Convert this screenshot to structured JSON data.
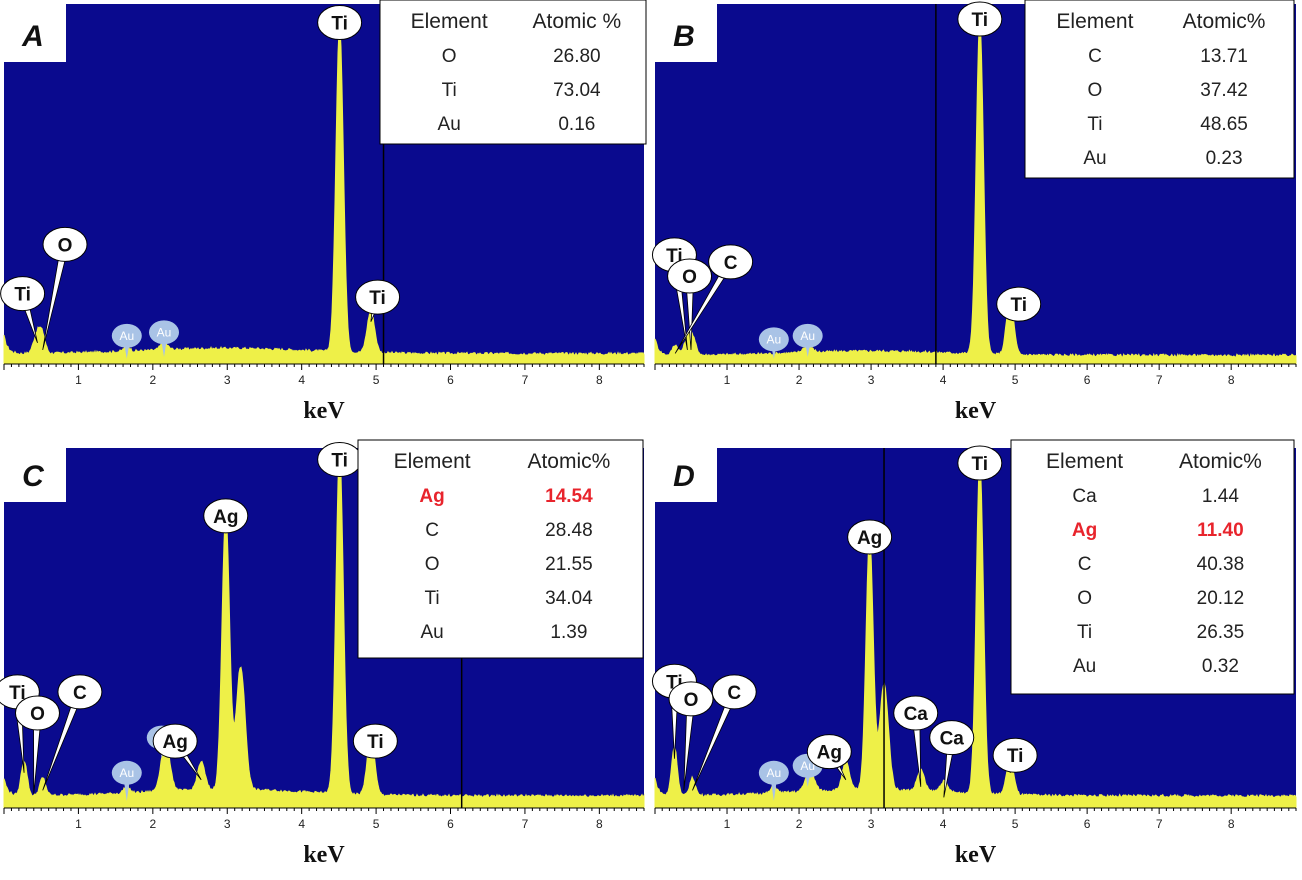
{
  "colors": {
    "plot_bg": "#0a0a8e",
    "spectrum": "#eef048",
    "label_bg": "#ffffff",
    "au_label_bg": "#a9c3e6",
    "highlight": "#e8242c"
  },
  "chart_data": [
    {
      "type": "line",
      "title": "A",
      "xlabel": "keV",
      "ylabel": "",
      "xlim": [
        0,
        8.6
      ],
      "ylim": [
        0,
        1
      ],
      "ticks": [
        "1",
        "2",
        "3",
        "4",
        "5",
        "6",
        "7",
        "8"
      ],
      "grid": false,
      "marker_line": 5.1,
      "baseline": 0.025,
      "peaks": [
        {
          "x": 0.45,
          "y": 0.06,
          "w": 0.05
        },
        {
          "x": 0.52,
          "y": 0.04,
          "w": 0.04
        },
        {
          "x": 1.65,
          "y": 0.015,
          "w": 0.04
        },
        {
          "x": 2.15,
          "y": 0.02,
          "w": 0.05
        },
        {
          "x": 4.51,
          "y": 0.93,
          "w": 0.05
        },
        {
          "x": 4.93,
          "y": 0.12,
          "w": 0.05
        }
      ],
      "peak_labels": [
        {
          "text": "Ti",
          "x": 0.45,
          "y": 0.06,
          "lx": 0.25,
          "ly": 0.2,
          "style": "big"
        },
        {
          "text": "O",
          "x": 0.52,
          "y": 0.04,
          "lx": 0.82,
          "ly": 0.34,
          "style": "big"
        },
        {
          "text": "Au",
          "x": 1.65,
          "y": 0.015,
          "lx": 1.65,
          "ly": 0.08,
          "style": "small"
        },
        {
          "text": "Au",
          "x": 2.15,
          "y": 0.02,
          "lx": 2.15,
          "ly": 0.09,
          "style": "small"
        },
        {
          "text": "Ti",
          "x": 4.51,
          "y": 0.93,
          "lx": 4.51,
          "ly": 0.97,
          "style": "big"
        },
        {
          "text": "Ti",
          "x": 4.93,
          "y": 0.12,
          "lx": 5.02,
          "ly": 0.19,
          "style": "big"
        }
      ],
      "table": {
        "headers": [
          "Element",
          "Atomic %"
        ],
        "rows": [
          [
            "O",
            "26.80"
          ],
          [
            "Ti",
            "73.04"
          ],
          [
            "Au",
            "0.16"
          ]
        ],
        "highlight_rows": []
      }
    },
    {
      "type": "line",
      "title": "B",
      "xlabel": "keV",
      "ylabel": "",
      "xlim": [
        0,
        8.9
      ],
      "ylim": [
        0,
        1
      ],
      "ticks": [
        "1",
        "2",
        "3",
        "4",
        "5",
        "6",
        "7",
        "8"
      ],
      "grid": false,
      "marker_line": 3.9,
      "baseline": 0.02,
      "peaks": [
        {
          "x": 0.28,
          "y": 0.03,
          "w": 0.04
        },
        {
          "x": 0.45,
          "y": 0.04,
          "w": 0.05
        },
        {
          "x": 0.52,
          "y": 0.045,
          "w": 0.05
        },
        {
          "x": 2.12,
          "y": 0.02,
          "w": 0.06
        },
        {
          "x": 4.51,
          "y": 0.95,
          "w": 0.05
        },
        {
          "x": 4.93,
          "y": 0.16,
          "w": 0.05
        }
      ],
      "peak_labels": [
        {
          "text": "Ti",
          "x": 0.45,
          "y": 0.04,
          "lx": 0.27,
          "ly": 0.31,
          "style": "big"
        },
        {
          "text": "O",
          "x": 0.5,
          "y": 0.04,
          "lx": 0.48,
          "ly": 0.25,
          "style": "big"
        },
        {
          "text": "C",
          "x": 0.28,
          "y": 0.03,
          "lx": 1.05,
          "ly": 0.29,
          "style": "big"
        },
        {
          "text": "Au",
          "x": 1.65,
          "y": 0.015,
          "lx": 1.65,
          "ly": 0.07,
          "style": "small"
        },
        {
          "text": "Au",
          "x": 2.12,
          "y": 0.02,
          "lx": 2.12,
          "ly": 0.08,
          "style": "small"
        },
        {
          "text": "Ti",
          "x": 4.51,
          "y": 0.95,
          "lx": 4.51,
          "ly": 0.98,
          "style": "big"
        },
        {
          "text": "Ti",
          "x": 4.93,
          "y": 0.16,
          "lx": 5.05,
          "ly": 0.17,
          "style": "big"
        }
      ],
      "table": {
        "headers": [
          "Element",
          "Atomic%"
        ],
        "rows": [
          [
            "C",
            "13.71"
          ],
          [
            "O",
            "37.42"
          ],
          [
            "Ti",
            "48.65"
          ],
          [
            "Au",
            "0.23"
          ]
        ],
        "highlight_rows": []
      }
    },
    {
      "type": "line",
      "title": "C",
      "xlabel": "keV",
      "ylabel": "",
      "xlim": [
        0,
        8.6
      ],
      "ylim": [
        0,
        1
      ],
      "ticks": [
        "1",
        "2",
        "3",
        "4",
        "5",
        "6",
        "7",
        "8"
      ],
      "grid": false,
      "marker_line": 6.15,
      "baseline": 0.03,
      "peaks": [
        {
          "x": 0.27,
          "y": 0.1,
          "w": 0.04
        },
        {
          "x": 0.52,
          "y": 0.05,
          "w": 0.04
        },
        {
          "x": 1.65,
          "y": 0.02,
          "w": 0.04
        },
        {
          "x": 2.17,
          "y": 0.14,
          "w": 0.06
        },
        {
          "x": 2.65,
          "y": 0.08,
          "w": 0.05
        },
        {
          "x": 2.98,
          "y": 0.79,
          "w": 0.05
        },
        {
          "x": 3.18,
          "y": 0.35,
          "w": 0.06
        },
        {
          "x": 4.51,
          "y": 0.97,
          "w": 0.05
        },
        {
          "x": 4.93,
          "y": 0.17,
          "w": 0.05
        }
      ],
      "peak_labels": [
        {
          "text": "Ti",
          "x": 0.27,
          "y": 0.1,
          "lx": 0.18,
          "ly": 0.33,
          "style": "big"
        },
        {
          "text": "O",
          "x": 0.4,
          "y": 0.04,
          "lx": 0.45,
          "ly": 0.27,
          "style": "big"
        },
        {
          "text": "C",
          "x": 0.52,
          "y": 0.05,
          "lx": 1.02,
          "ly": 0.33,
          "style": "big"
        },
        {
          "text": "Au",
          "x": 1.65,
          "y": 0.02,
          "lx": 1.65,
          "ly": 0.1,
          "style": "small"
        },
        {
          "text": "Au",
          "x": 2.12,
          "y": 0.14,
          "lx": 2.12,
          "ly": 0.2,
          "style": "small"
        },
        {
          "text": "Ag",
          "x": 2.65,
          "y": 0.08,
          "lx": 2.3,
          "ly": 0.19,
          "style": "big"
        },
        {
          "text": "Ag",
          "x": 2.98,
          "y": 0.79,
          "lx": 2.98,
          "ly": 0.83,
          "style": "big"
        },
        {
          "text": "Ti",
          "x": 4.51,
          "y": 0.97,
          "lx": 4.51,
          "ly": 0.99,
          "style": "big"
        },
        {
          "text": "Ti",
          "x": 4.93,
          "y": 0.17,
          "lx": 4.99,
          "ly": 0.19,
          "style": "big"
        }
      ],
      "table": {
        "headers": [
          "Element",
          "Atomic%"
        ],
        "rows": [
          [
            "Ag",
            "14.54"
          ],
          [
            "C",
            "28.48"
          ],
          [
            "O",
            "21.55"
          ],
          [
            "Ti",
            "34.04"
          ],
          [
            "Au",
            "1.39"
          ]
        ],
        "highlight_rows": [
          0
        ]
      }
    },
    {
      "type": "line",
      "title": "D",
      "xlabel": "keV",
      "ylabel": "",
      "xlim": [
        0,
        8.9
      ],
      "ylim": [
        0,
        1
      ],
      "ticks": [
        "1",
        "2",
        "3",
        "4",
        "5",
        "6",
        "7",
        "8"
      ],
      "grid": false,
      "marker_line": 3.18,
      "baseline": 0.03,
      "peaks": [
        {
          "x": 0.27,
          "y": 0.14,
          "w": 0.04
        },
        {
          "x": 0.52,
          "y": 0.05,
          "w": 0.04
        },
        {
          "x": 1.65,
          "y": 0.02,
          "w": 0.04
        },
        {
          "x": 2.15,
          "y": 0.06,
          "w": 0.06
        },
        {
          "x": 2.65,
          "y": 0.08,
          "w": 0.05
        },
        {
          "x": 2.98,
          "y": 0.72,
          "w": 0.05
        },
        {
          "x": 3.18,
          "y": 0.3,
          "w": 0.06
        },
        {
          "x": 3.69,
          "y": 0.06,
          "w": 0.05
        },
        {
          "x": 4.01,
          "y": 0.03,
          "w": 0.05
        },
        {
          "x": 4.51,
          "y": 0.95,
          "w": 0.05
        },
        {
          "x": 4.93,
          "y": 0.1,
          "w": 0.05
        }
      ],
      "peak_labels": [
        {
          "text": "Ti",
          "x": 0.27,
          "y": 0.14,
          "lx": 0.27,
          "ly": 0.36,
          "style": "big"
        },
        {
          "text": "O",
          "x": 0.4,
          "y": 0.05,
          "lx": 0.5,
          "ly": 0.31,
          "style": "big"
        },
        {
          "text": "C",
          "x": 0.52,
          "y": 0.05,
          "lx": 1.1,
          "ly": 0.33,
          "style": "big"
        },
        {
          "text": "Au",
          "x": 1.65,
          "y": 0.02,
          "lx": 1.65,
          "ly": 0.1,
          "style": "small"
        },
        {
          "text": "Au",
          "x": 2.12,
          "y": 0.06,
          "lx": 2.12,
          "ly": 0.12,
          "style": "small"
        },
        {
          "text": "Ag",
          "x": 2.65,
          "y": 0.08,
          "lx": 2.42,
          "ly": 0.16,
          "style": "big"
        },
        {
          "text": "Ag",
          "x": 2.98,
          "y": 0.72,
          "lx": 2.98,
          "ly": 0.77,
          "style": "big"
        },
        {
          "text": "Ca",
          "x": 3.69,
          "y": 0.06,
          "lx": 3.62,
          "ly": 0.27,
          "style": "big"
        },
        {
          "text": "Ca",
          "x": 4.01,
          "y": 0.03,
          "lx": 4.12,
          "ly": 0.2,
          "style": "big"
        },
        {
          "text": "Ti",
          "x": 4.51,
          "y": 0.95,
          "lx": 4.51,
          "ly": 0.98,
          "style": "big"
        },
        {
          "text": "Ti",
          "x": 4.93,
          "y": 0.1,
          "lx": 5.0,
          "ly": 0.15,
          "style": "big"
        }
      ],
      "table": {
        "headers": [
          "Element",
          "Atomic%"
        ],
        "rows": [
          [
            "Ca",
            "1.44"
          ],
          [
            "Ag",
            "11.40"
          ],
          [
            "C",
            "40.38"
          ],
          [
            "O",
            "20.12"
          ],
          [
            "Ti",
            "26.35"
          ],
          [
            "Au",
            "0.32"
          ]
        ],
        "highlight_rows": [
          1
        ]
      }
    }
  ]
}
